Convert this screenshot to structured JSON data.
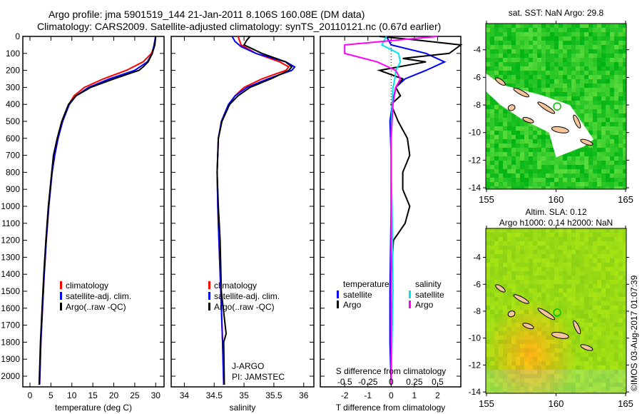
{
  "header": {
    "line1": "Argo profile: jma 5901519_144 21-Jan-2011 8.106S 160.08E (DM data)",
    "line2": "Climatology: CARS2009. Satellite-adjusted climatology: synTS_20110121.nc (0.67d earlier)"
  },
  "footer": {
    "copyright": "©IMOS 03-Aug-2017 01:07:39"
  },
  "colors": {
    "climatology": "#ff0000",
    "satellite": "#0000ff",
    "argo": "#000000",
    "sal_satellite": "#00e5ee",
    "sal_argo": "#ff00ff"
  },
  "chart_data": [
    {
      "type": "line",
      "name": "temperature",
      "xlabel": "temperature (deg C)",
      "xlim": [
        -1.7,
        32
      ],
      "ylim": [
        2060,
        0
      ],
      "xticks": [
        "0",
        "5",
        "10",
        "15",
        "20",
        "25",
        "30"
      ],
      "xtickvals": [
        0,
        5,
        10,
        15,
        20,
        25,
        30
      ],
      "yticks": [
        "0",
        "100",
        "200",
        "300",
        "400",
        "500",
        "600",
        "700",
        "800",
        "900",
        "1000",
        "1100",
        "1200",
        "1300",
        "1400",
        "1500",
        "1600",
        "1700",
        "1800",
        "1900",
        "2000"
      ],
      "legend": [
        "climatology",
        "satellite-adj. clim.",
        "Argo(..raw -QC)"
      ],
      "series": [
        {
          "name": "climatology",
          "color": "#ff0000",
          "depth": [
            0,
            50,
            100,
            150,
            200,
            250,
            300,
            350,
            400,
            500,
            600,
            700,
            800,
            1000,
            1200,
            1400,
            1600,
            1800,
            2050
          ],
          "values": [
            30,
            29.7,
            29,
            27,
            23,
            17.5,
            13,
            10.5,
            9.3,
            7.8,
            6.7,
            5.9,
            5.3,
            4.5,
            3.9,
            3.4,
            3.0,
            2.6,
            2.3
          ]
        },
        {
          "name": "satellite-adj. clim.",
          "color": "#0000ff",
          "depth": [
            0,
            50,
            100,
            150,
            200,
            250,
            300,
            350,
            400,
            500,
            600,
            700,
            800,
            1000,
            1200,
            1400,
            1600,
            1800,
            2050
          ],
          "values": [
            30,
            29.6,
            29.2,
            28,
            25,
            19,
            14,
            11,
            9.4,
            7.8,
            6.7,
            5.9,
            5.3,
            4.5,
            3.9,
            3.4,
            3.0,
            2.6,
            2.3
          ]
        },
        {
          "name": "Argo(..raw -QC)",
          "color": "#000000",
          "depth": [
            0,
            50,
            100,
            150,
            180,
            200,
            250,
            300,
            350,
            400,
            500,
            600,
            700,
            800,
            1000,
            1200,
            1400,
            1600,
            1800,
            2050
          ],
          "values": [
            30,
            29.8,
            29.2,
            28.2,
            27,
            26,
            20,
            14.5,
            11,
            9.2,
            7.6,
            6.5,
            5.6,
            5.2,
            4.4,
            3.8,
            3.3,
            2.9,
            2.5,
            2.2
          ]
        }
      ]
    },
    {
      "type": "line",
      "name": "salinity",
      "xlabel": "salinity",
      "xlim": [
        33.78,
        36.17
      ],
      "ylim": [
        2060,
        0
      ],
      "xticks": [
        "34",
        "34.5",
        "35",
        "35.5",
        "36"
      ],
      "xtickvals": [
        34,
        34.5,
        35,
        35.5,
        36
      ],
      "legend": [
        "climatology",
        "satellite-adj. clim.",
        "Argo(..raw -QC)"
      ],
      "annotation": [
        "J-ARGO",
        "PI: JAMSTEC"
      ],
      "series": [
        {
          "name": "climatology",
          "color": "#ff0000",
          "depth": [
            0,
            50,
            100,
            150,
            180,
            200,
            250,
            300,
            350,
            400,
            500,
            600,
            800,
            1000,
            1200,
            1500,
            1800,
            2050
          ],
          "values": [
            34.9,
            34.95,
            35.2,
            35.6,
            35.75,
            35.7,
            35.3,
            35.0,
            34.85,
            34.75,
            34.63,
            34.57,
            34.55,
            34.56,
            34.58,
            34.61,
            34.64,
            34.66
          ]
        },
        {
          "name": "satellite-adj. clim.",
          "color": "#0000ff",
          "depth": [
            0,
            30,
            60,
            100,
            150,
            180,
            200,
            250,
            300,
            350,
            400,
            500,
            600,
            800,
            1000,
            1200,
            1500,
            1800,
            2050
          ],
          "values": [
            34.8,
            34.85,
            34.95,
            35.2,
            35.7,
            35.85,
            35.8,
            35.4,
            35.05,
            34.85,
            34.74,
            34.62,
            34.57,
            34.55,
            34.56,
            34.58,
            34.61,
            34.64,
            34.66
          ]
        },
        {
          "name": "Argo(..raw -QC)",
          "color": "#000000",
          "depth": [
            0,
            20,
            50,
            100,
            150,
            180,
            200,
            250,
            300,
            350,
            400,
            500,
            600,
            800,
            1000,
            1200,
            1500,
            1750,
            1800,
            2050
          ],
          "values": [
            35.1,
            35.05,
            35.0,
            35.3,
            35.7,
            35.8,
            35.75,
            35.45,
            35.1,
            34.9,
            34.76,
            34.63,
            34.57,
            34.55,
            34.57,
            34.6,
            34.62,
            34.7,
            34.66,
            34.67
          ]
        }
      ]
    },
    {
      "type": "line",
      "name": "difference",
      "xlabel": "T difference from climatology",
      "xlabel2": "S difference from climatology",
      "xlim": [
        -3.05,
        3.0
      ],
      "ylim": [
        2060,
        0
      ],
      "xticks": [
        "-2",
        "-1",
        "0",
        "1",
        "2"
      ],
      "xtickvals": [
        -2,
        -1,
        0,
        1,
        2
      ],
      "x2ticks": [
        "-0.5",
        "-0.25",
        "0",
        "0.25",
        "0.5"
      ],
      "x2tickvals": [
        -0.5,
        -0.25,
        0,
        0.25,
        0.5
      ],
      "s_scale": 4.0,
      "legend": {
        "temperature": "temperature",
        "salinity": "salinity",
        "t_satellite": "satellite",
        "t_argo": "Argo",
        "s_satellite": "satellite",
        "s_argo": "Argo"
      },
      "series": [
        {
          "name": "T satellite",
          "color": "#0000ff",
          "depth": [
            0,
            50,
            100,
            150,
            200,
            250,
            300,
            400,
            500,
            700,
            1000,
            1500,
            1800,
            2050
          ],
          "values": [
            -0.2,
            0,
            1.5,
            2.3,
            1.5,
            0.6,
            0.2,
            0.05,
            -0.05,
            0,
            0,
            -0.05,
            -0.05,
            0
          ]
        },
        {
          "name": "T Argo",
          "color": "#000000",
          "depth": [
            0,
            20,
            50,
            100,
            130,
            150,
            200,
            250,
            300,
            350,
            400,
            500,
            600,
            700,
            800,
            900,
            1000,
            1100,
            1200,
            1400,
            2050
          ],
          "values": [
            -0.5,
            1,
            3,
            2.5,
            0.5,
            1.5,
            -0.5,
            0.5,
            0.2,
            0.4,
            0,
            0.3,
            0.7,
            0.8,
            0.5,
            0.5,
            0.8,
            0.6,
            0.1,
            0,
            0
          ]
        },
        {
          "name": "S satellite",
          "color": "#00e5ee",
          "depth": [
            0,
            50,
            100,
            150,
            200,
            250,
            300,
            400,
            600,
            800,
            1000,
            1500,
            2050
          ],
          "values": [
            -0.05,
            -0.1,
            0.08,
            0.1,
            0.05,
            0.04,
            0.02,
            0.01,
            0,
            0,
            0.01,
            0.02,
            0
          ]
        },
        {
          "name": "S Argo",
          "color": "#ff00ff",
          "depth": [
            0,
            50,
            100,
            150,
            200,
            250,
            300,
            400,
            600,
            800,
            1000,
            1500,
            2050
          ],
          "values": [
            0.5,
            -0.5,
            -0.5,
            -0.15,
            0.05,
            0.1,
            0.05,
            0.02,
            0,
            0,
            0,
            0,
            0
          ]
        }
      ]
    }
  ],
  "maps": [
    {
      "title": "sat. SST: NaN Argo: 29.8",
      "lat_ticks": [
        "-4",
        "-6",
        "-8",
        "-10",
        "-12",
        "-14"
      ],
      "lon_ticks": [
        "155",
        "160",
        "165"
      ]
    },
    {
      "title": "Altim. SLA: 0.12",
      "title2": "Argo h1000: 0.14 h2000: NaN",
      "lat_ticks": [
        "-4",
        "-6",
        "-8",
        "-10",
        "-12",
        "-14"
      ],
      "lon_ticks": [
        "155",
        "160",
        "165"
      ]
    }
  ]
}
